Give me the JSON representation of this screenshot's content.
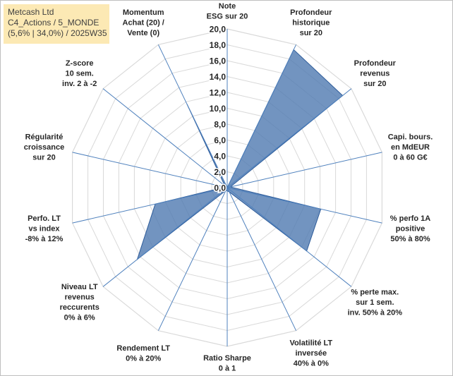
{
  "header": {
    "company": "Metcash Ltd",
    "line2": "C4_Actions / 5_MONDE",
    "line3": "(5,6% | 34,0%) / 2025W35"
  },
  "chart_data": {
    "type": "radar",
    "title": "",
    "rmax": 20,
    "ticks": [
      "0,0",
      "2,0",
      "4,0",
      "6,0",
      "8,0",
      "10,0",
      "12,0",
      "14,0",
      "16,0",
      "18,0",
      "20,0"
    ],
    "axes": [
      [
        "Note",
        "ESG sur 20"
      ],
      [
        "Profondeur",
        "historique",
        "sur 20"
      ],
      [
        "Profondeur",
        "revenus",
        "sur 20"
      ],
      [
        "Capi. bours.",
        "en MdEUR",
        "0 à 60 G€"
      ],
      [
        "% perfo 1A",
        "positive",
        "50% à 80%"
      ],
      [
        "% perte max.",
        "sur 1 sem.",
        "inv. 50% à 20%"
      ],
      [
        "Volatilité LT",
        "inversée",
        "40% à 0%"
      ],
      [
        "Ratio Sharpe",
        "0 à 1"
      ],
      [
        "Rendement LT",
        "0% à 20%"
      ],
      [
        "Niveau LT",
        "revenus",
        "reccurents",
        "0% à 6%"
      ],
      [
        "Perfo. LT",
        "vs index",
        "-8% à 12%"
      ],
      [
        "Régularité",
        "croissance",
        "sur 20"
      ],
      [
        "Z-score",
        "10 sem.",
        "inv. 2 à -2"
      ],
      [
        "Momentum",
        "Achat (20) /",
        "Vente (0)"
      ]
    ],
    "values": [
      0,
      19.3,
      18.6,
      0.4,
      12.1,
      12.8,
      0.6,
      0.4,
      0.4,
      14.5,
      9.3,
      0.3,
      0.4,
      11.7
    ],
    "colors": {
      "fill": "#4f79b0",
      "fill_opacity": 0.8,
      "stroke": "#2e5c9a",
      "grid": "#d9d9d9",
      "spoke": "#4f81bd"
    }
  }
}
